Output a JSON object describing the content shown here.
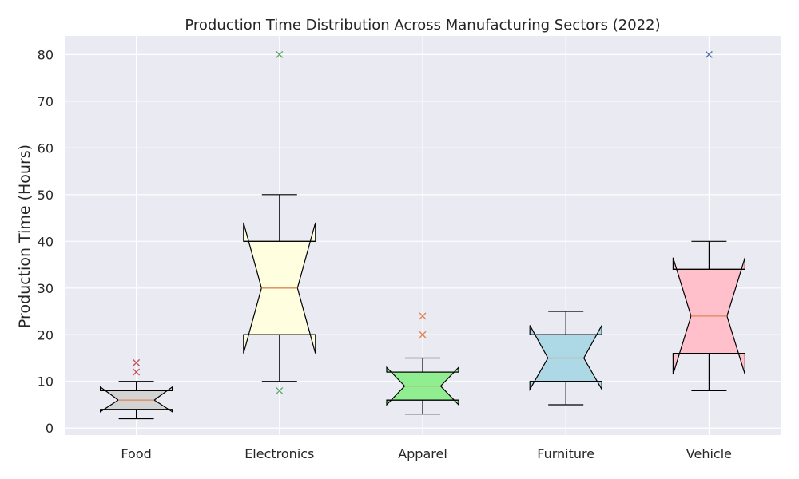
{
  "chart_data": {
    "type": "box",
    "title": "Production Time Distribution Across Manufacturing Sectors (2022)",
    "xlabel": "",
    "ylabel": "Production Time (Hours)",
    "ylim": [
      -1.5,
      84
    ],
    "y_ticks": [
      0,
      10,
      20,
      30,
      40,
      50,
      60,
      70,
      80
    ],
    "grid": true,
    "notched": true,
    "categories": [
      "Food",
      "Electronics",
      "Apparel",
      "Furniture",
      "Vehicle"
    ],
    "boxes": [
      {
        "category": "Food",
        "whisker_low": 2,
        "q1": 4,
        "median": 6,
        "q3": 8,
        "whisker_high": 10,
        "notch_low": 3.5,
        "notch_high": 8.8,
        "outliers": [
          12,
          14
        ],
        "fill_color": "#d3d3d3",
        "outlier_color": "#c44e52"
      },
      {
        "category": "Electronics",
        "whisker_low": 10,
        "q1": 20,
        "median": 30,
        "q3": 40,
        "whisker_high": 50,
        "notch_low": 16,
        "notch_high": 44,
        "outliers": [
          8,
          80
        ],
        "fill_color": "#ffffe0",
        "outlier_color": "#55a868"
      },
      {
        "category": "Apparel",
        "whisker_low": 3,
        "q1": 6,
        "median": 9,
        "q3": 12,
        "whisker_high": 15,
        "notch_low": 5,
        "notch_high": 13,
        "outliers": [
          20,
          24
        ],
        "fill_color": "#90ee90",
        "outlier_color": "#dd8452"
      },
      {
        "category": "Furniture",
        "whisker_low": 5,
        "q1": 10,
        "median": 15,
        "q3": 20,
        "whisker_high": 25,
        "notch_low": 8.3,
        "notch_high": 22,
        "outliers": [],
        "fill_color": "#add8e6",
        "outlier_color": "#4c72b0"
      },
      {
        "category": "Vehicle",
        "whisker_low": 8,
        "q1": 16,
        "median": 24,
        "q3": 34,
        "whisker_high": 40,
        "notch_low": 11.5,
        "notch_high": 36.5,
        "outliers": [
          80
        ],
        "fill_color": "#ffc0cb",
        "outlier_color": "#4c72b0"
      }
    ],
    "median_color": "#dd8452",
    "background_color": "#eaeaf2"
  }
}
